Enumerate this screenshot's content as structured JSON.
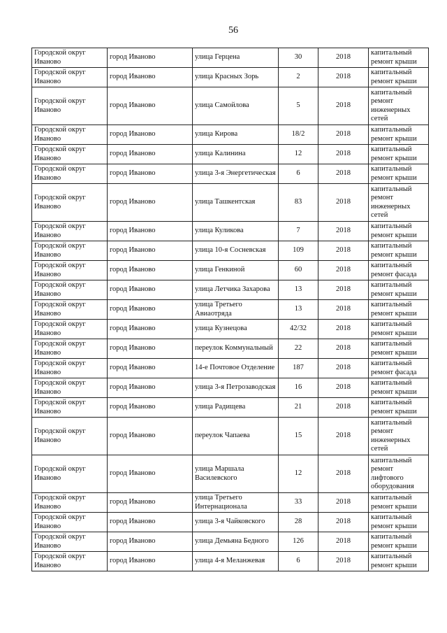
{
  "page_number": "56",
  "rows": [
    {
      "district": "Городской округ Иваново",
      "city": "город Иваново",
      "street": "улица Герцена",
      "house": "30",
      "year": "2018",
      "work": "капитальный ремонт крыши"
    },
    {
      "district": "Городской округ Иваново",
      "city": "город Иваново",
      "street": "улица Красных Зорь",
      "house": "2",
      "year": "2018",
      "work": "капитальный ремонт крыши"
    },
    {
      "district": "Городской округ Иваново",
      "city": "город Иваново",
      "street": "улица Самойлова",
      "house": "5",
      "year": "2018",
      "work": "капитальный ремонт инженерных сетей"
    },
    {
      "district": "Городской округ Иваново",
      "city": "город Иваново",
      "street": "улица Кирова",
      "house": "18/2",
      "year": "2018",
      "work": "капитальный ремонт крыши"
    },
    {
      "district": "Городской округ Иваново",
      "city": "город Иваново",
      "street": "улица Калинина",
      "house": "12",
      "year": "2018",
      "work": "капитальный ремонт крыши"
    },
    {
      "district": "Городской округ Иваново",
      "city": "город Иваново",
      "street": "улица 3-я Энергетическая",
      "house": "6",
      "year": "2018",
      "work": "капитальный ремонт крыши"
    },
    {
      "district": "Городской округ Иваново",
      "city": "город Иваново",
      "street": "улица Ташкентская",
      "house": "83",
      "year": "2018",
      "work": "капитальный ремонт инженерных сетей"
    },
    {
      "district": "Городской округ Иваново",
      "city": "город Иваново",
      "street": "улица Куликова",
      "house": "7",
      "year": "2018",
      "work": "капитальный ремонт крыши"
    },
    {
      "district": "Городской округ Иваново",
      "city": "город Иваново",
      "street": "улица 10-я Сосневская",
      "house": "109",
      "year": "2018",
      "work": "капитальный ремонт крыши"
    },
    {
      "district": "Городской округ Иваново",
      "city": "город Иваново",
      "street": "улица Генкиной",
      "house": "60",
      "year": "2018",
      "work": "капитальный ремонт фасада"
    },
    {
      "district": "Городской округ Иваново",
      "city": "город Иваново",
      "street": "улица Летчика Захарова",
      "house": "13",
      "year": "2018",
      "work": "капитальный ремонт крыши"
    },
    {
      "district": "Городской округ Иваново",
      "city": "город Иваново",
      "street": "улица Третьего Авиаотряда",
      "house": "13",
      "year": "2018",
      "work": "капитальный ремонт крыши"
    },
    {
      "district": "Городской округ Иваново",
      "city": "город Иваново",
      "street": "улица Кузнецова",
      "house": "42/32",
      "year": "2018",
      "work": "капитальный ремонт крыши"
    },
    {
      "district": "Городской округ Иваново",
      "city": "город Иваново",
      "street": "переулок Коммунальный",
      "house": "22",
      "year": "2018",
      "work": "капитальный ремонт крыши"
    },
    {
      "district": "Городской округ Иваново",
      "city": "город Иваново",
      "street": "14-е Почтовое Отделение",
      "house": "187",
      "year": "2018",
      "work": "капитальный ремонт фасада"
    },
    {
      "district": "Городской округ Иваново",
      "city": "город Иваново",
      "street": "улица 3-я Петрозаводская",
      "house": "16",
      "year": "2018",
      "work": "капитальный ремонт крыши"
    },
    {
      "district": "Городской округ Иваново",
      "city": "город Иваново",
      "street": "улица Радищева",
      "house": "21",
      "year": "2018",
      "work": "капитальный ремонт крыши"
    },
    {
      "district": "Городской округ Иваново",
      "city": "город Иваново",
      "street": "переулок Чапаева",
      "house": "15",
      "year": "2018",
      "work": "капитальный ремонт инженерных сетей"
    },
    {
      "district": "Городской округ Иваново",
      "city": "город Иваново",
      "street": "улица Маршала Василевского",
      "house": "12",
      "year": "2018",
      "work": "капитальный ремонт лифтового оборудования"
    },
    {
      "district": "Городской округ Иваново",
      "city": "город Иваново",
      "street": "улица Третьего Интернационала",
      "house": "33",
      "year": "2018",
      "work": "капитальный ремонт крыши"
    },
    {
      "district": "Городской округ Иваново",
      "city": "город Иваново",
      "street": "улица 3-я Чайковского",
      "house": "28",
      "year": "2018",
      "work": "капитальный ремонт крыши"
    },
    {
      "district": "Городской округ Иваново",
      "city": "город Иваново",
      "street": "улица Демьяна Бедного",
      "house": "126",
      "year": "2018",
      "work": "капитальный ремонт крыши"
    },
    {
      "district": "Городской округ Иваново",
      "city": "город Иваново",
      "street": "улица 4-я Меланжевая",
      "house": "6",
      "year": "2018",
      "work": "капитальный ремонт крыши"
    }
  ]
}
